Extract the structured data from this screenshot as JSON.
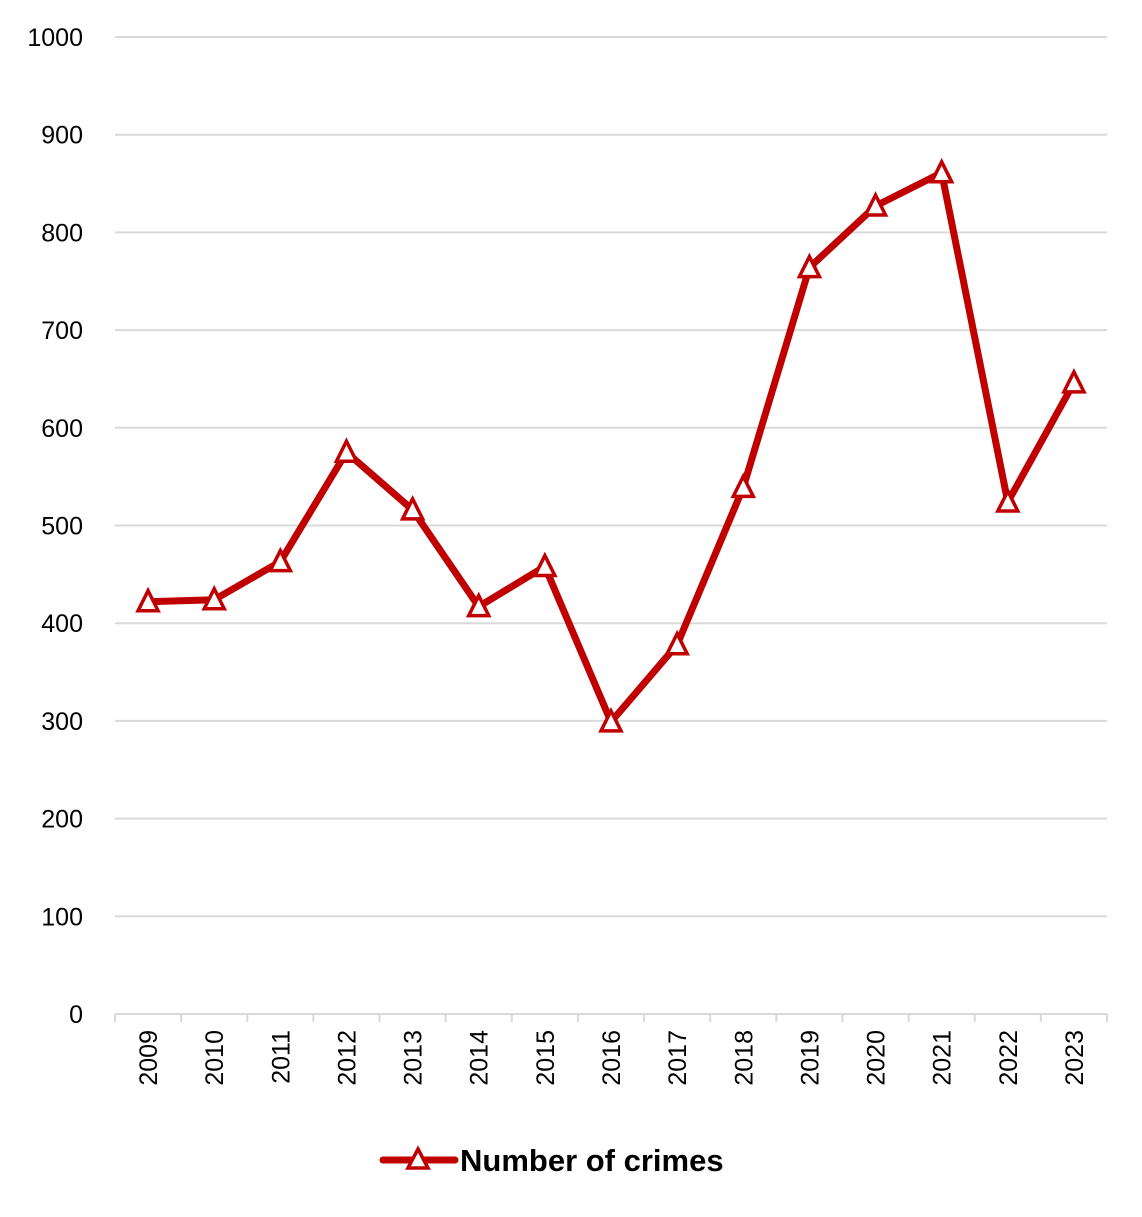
{
  "chart_data": {
    "type": "line",
    "title": "",
    "xlabel": "",
    "ylabel": "",
    "categories": [
      "2009",
      "2010",
      "2011",
      "2012",
      "2013",
      "2014",
      "2015",
      "2016",
      "2017",
      "2018",
      "2019",
      "2020",
      "2021",
      "2022",
      "2023"
    ],
    "series": [
      {
        "name": "Number of crimes",
        "color": "#C00000",
        "marker": "triangle",
        "values": [
          422,
          424,
          463,
          575,
          516,
          417,
          458,
          299,
          378,
          539,
          764,
          827,
          861,
          524,
          646
        ]
      }
    ],
    "ylim": [
      0,
      1000
    ],
    "yticks": [
      0,
      100,
      200,
      300,
      400,
      500,
      600,
      700,
      800,
      900,
      1000
    ],
    "grid": true,
    "legend": "bottom-center"
  }
}
